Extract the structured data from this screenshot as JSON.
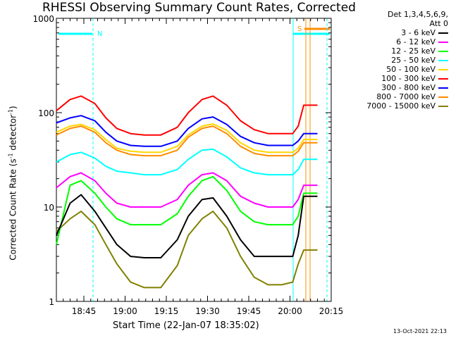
{
  "chart_data": {
    "type": "line",
    "title": "RHESSI Observing Summary Count Rates, Corrected",
    "xlabel": "Start Time (22-Jan-07 18:35:02)",
    "ylabel_main": "Corrected Count Rate (s",
    "ylabel_sup1": "-1",
    "ylabel_mid": " detector",
    "ylabel_sup2": "-1",
    "ylabel_end": ")",
    "y_scale": "log",
    "ylim": [
      1,
      1000
    ],
    "y_ticks": [
      {
        "value": 1,
        "label": "1"
      },
      {
        "value": 10,
        "label": "10"
      },
      {
        "value": 100,
        "label": "100"
      },
      {
        "value": 1000,
        "label": "1000"
      }
    ],
    "xlim_min": [
      0,
      100
    ],
    "x_ticks": [
      {
        "value": 10,
        "label": "18:45"
      },
      {
        "value": 25,
        "label": "19:00"
      },
      {
        "value": 40,
        "label": "19:15"
      },
      {
        "value": 55,
        "label": "19:30"
      },
      {
        "value": 70,
        "label": "19:45"
      },
      {
        "value": 85,
        "label": "20:00"
      },
      {
        "value": 100,
        "label": "20:15"
      }
    ],
    "legend_header": [
      "Det 1,3,4,5,6,9,",
      "Att 0"
    ],
    "legend_placement": "right",
    "series": [
      {
        "name": "3 - 6 keV",
        "color": "#000000",
        "x": [
          0,
          5,
          9,
          14,
          18,
          22,
          27,
          32,
          38,
          44,
          48,
          53,
          57,
          62,
          67,
          72,
          77,
          82,
          86,
          88,
          90,
          95
        ],
        "y": [
          5,
          11,
          13.5,
          9,
          6,
          4,
          3,
          2.9,
          2.9,
          4.5,
          8,
          12,
          12.5,
          8,
          4.5,
          3,
          3,
          3,
          3,
          5,
          13,
          13
        ]
      },
      {
        "name": "6 - 12 keV",
        "color": "#ff00ff",
        "x": [
          0,
          5,
          9,
          14,
          18,
          22,
          27,
          32,
          38,
          44,
          48,
          53,
          57,
          62,
          67,
          72,
          77,
          82,
          86,
          88,
          90,
          95
        ],
        "y": [
          16,
          21,
          23,
          19,
          14,
          11,
          10,
          10,
          10,
          12,
          17,
          22,
          23,
          19,
          13,
          11,
          10,
          10,
          10,
          12,
          17,
          17
        ]
      },
      {
        "name": "12 - 25 keV",
        "color": "#00ff00",
        "x": [
          0,
          5,
          9,
          14,
          18,
          22,
          27,
          32,
          38,
          44,
          48,
          53,
          57,
          62,
          67,
          72,
          77,
          82,
          86,
          88,
          90,
          95
        ],
        "y": [
          4,
          17,
          19,
          14,
          10,
          7.5,
          6.5,
          6.5,
          6.5,
          8.5,
          13,
          19,
          21,
          15,
          9,
          7,
          6.5,
          6.5,
          6.5,
          8,
          14,
          14
        ]
      },
      {
        "name": "25 - 50 keV",
        "color": "#00ffff",
        "x": [
          0,
          5,
          9,
          14,
          18,
          22,
          27,
          32,
          38,
          44,
          48,
          53,
          57,
          62,
          67,
          72,
          77,
          82,
          86,
          88,
          90,
          95
        ],
        "y": [
          30,
          36,
          38,
          33,
          27,
          24,
          23,
          22,
          22,
          25,
          32,
          40,
          41,
          34,
          26,
          23,
          22,
          22,
          22,
          25,
          32,
          32
        ]
      },
      {
        "name": "50 - 100 keV",
        "color": "#ffd700",
        "x": [
          0,
          5,
          9,
          14,
          18,
          22,
          27,
          32,
          38,
          44,
          48,
          53,
          57,
          62,
          67,
          72,
          77,
          82,
          86,
          88,
          90,
          95
        ],
        "y": [
          62,
          72,
          75,
          66,
          52,
          42,
          39,
          38,
          38,
          44,
          58,
          72,
          76,
          65,
          48,
          40,
          38,
          38,
          38,
          42,
          52,
          52
        ]
      },
      {
        "name": "100 - 300 keV",
        "color": "#ff0000",
        "x": [
          0,
          5,
          9,
          14,
          18,
          22,
          27,
          32,
          38,
          44,
          48,
          53,
          57,
          62,
          67,
          72,
          77,
          82,
          86,
          88,
          90,
          95
        ],
        "y": [
          105,
          138,
          150,
          125,
          88,
          68,
          60,
          58,
          58,
          70,
          100,
          138,
          150,
          120,
          82,
          66,
          60,
          60,
          60,
          72,
          120,
          120
        ]
      },
      {
        "name": "300 - 800 keV",
        "color": "#0000ff",
        "x": [
          0,
          5,
          9,
          14,
          18,
          22,
          27,
          32,
          38,
          44,
          48,
          53,
          57,
          62,
          67,
          72,
          77,
          82,
          86,
          88,
          90,
          95
        ],
        "y": [
          78,
          88,
          93,
          82,
          62,
          50,
          45,
          44,
          44,
          50,
          68,
          86,
          90,
          75,
          56,
          48,
          45,
          45,
          45,
          50,
          60,
          60
        ]
      },
      {
        "name": "800 - 7000 keV",
        "color": "#ff8c00",
        "x": [
          0,
          5,
          9,
          14,
          18,
          22,
          27,
          32,
          38,
          44,
          48,
          53,
          57,
          62,
          67,
          72,
          77,
          82,
          86,
          88,
          90,
          95
        ],
        "y": [
          58,
          68,
          72,
          62,
          48,
          40,
          36,
          35,
          35,
          40,
          55,
          68,
          72,
          60,
          44,
          37,
          35,
          35,
          35,
          39,
          48,
          48
        ]
      },
      {
        "name": "7000 - 15000 keV",
        "color": "#808000",
        "x": [
          0,
          5,
          9,
          14,
          18,
          22,
          27,
          32,
          38,
          44,
          48,
          53,
          57,
          62,
          67,
          72,
          77,
          82,
          86,
          88,
          90,
          95
        ],
        "y": [
          5.5,
          7.5,
          9,
          6.5,
          4,
          2.5,
          1.6,
          1.4,
          1.4,
          2.4,
          5,
          7.5,
          9,
          6,
          3,
          1.8,
          1.5,
          1.5,
          1.6,
          2.5,
          3.5,
          3.5
        ]
      }
    ],
    "annotations": [
      {
        "label": "N",
        "color": "#00ffff"
      },
      {
        "label": "S",
        "color": "#ff8c00"
      }
    ],
    "footer": "13-Oct-2021 22:13",
    "colors": {
      "axes": "#000000",
      "background": "#ffffff"
    }
  }
}
